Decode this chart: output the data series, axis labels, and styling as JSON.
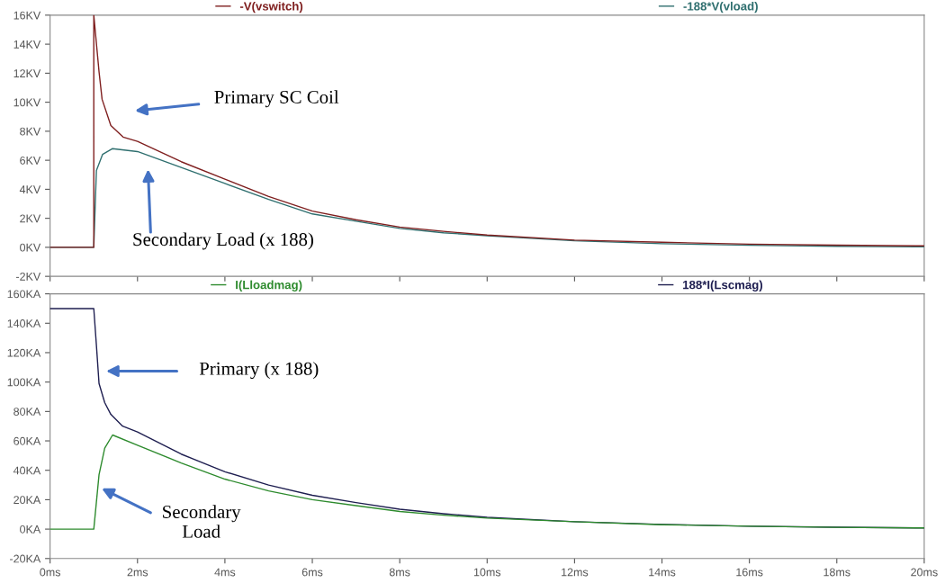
{
  "chart_data": [
    {
      "type": "line",
      "tick_labels": "y",
      "legend": "top",
      "xlim": [
        0,
        20
      ],
      "xticks": [
        0,
        2,
        4,
        6,
        8,
        10,
        12,
        14,
        16,
        18,
        20
      ],
      "ylim": [
        -2,
        16
      ],
      "yticks": [
        {
          "value": -2,
          "label": "-2KV"
        },
        {
          "value": 0,
          "label": "0KV"
        },
        {
          "value": 2,
          "label": "2KV"
        },
        {
          "value": 4,
          "label": "4KV"
        },
        {
          "value": 6,
          "label": "6KV"
        },
        {
          "value": 8,
          "label": "8KV"
        },
        {
          "value": 10,
          "label": "10KV"
        },
        {
          "value": 12,
          "label": "12KV"
        },
        {
          "value": 14,
          "label": "14KV"
        },
        {
          "value": 16,
          "label": "16KV"
        }
      ],
      "series": [
        {
          "name": "-V(vswitch)",
          "color": "#7f1f1f",
          "x": [
            0,
            1.0,
            1.0,
            1.12,
            1.19,
            1.39,
            1.67,
            2,
            3,
            4,
            5,
            6,
            7,
            8,
            9,
            10,
            12,
            14,
            16,
            18,
            20
          ],
          "values": [
            0,
            0,
            16,
            12.1,
            10.2,
            8.4,
            7.6,
            7.3,
            5.9,
            4.7,
            3.5,
            2.5,
            1.9,
            1.4,
            1.1,
            0.85,
            0.5,
            0.35,
            0.22,
            0.15,
            0.1
          ]
        },
        {
          "name": "-188*V(vload)",
          "color": "#2f6f6f",
          "x": [
            0,
            1.0,
            1.06,
            1.2,
            1.43,
            2,
            3,
            4,
            5,
            6,
            7,
            8,
            9,
            10,
            12,
            14,
            16,
            18,
            20
          ],
          "values": [
            0,
            0,
            5.3,
            6.4,
            6.8,
            6.6,
            5.5,
            4.4,
            3.3,
            2.3,
            1.8,
            1.3,
            1.0,
            0.8,
            0.45,
            0.25,
            0.14,
            0.07,
            0.03
          ]
        }
      ],
      "annotations": [
        "Primary SC Coil",
        "Secondary Load (x 188)"
      ]
    },
    {
      "type": "line",
      "legend": "top",
      "xlim": [
        0,
        20
      ],
      "xticks": [
        {
          "value": 0,
          "label": "0ms"
        },
        {
          "value": 2,
          "label": "2ms"
        },
        {
          "value": 4,
          "label": "4ms"
        },
        {
          "value": 6,
          "label": "6ms"
        },
        {
          "value": 8,
          "label": "8ms"
        },
        {
          "value": 10,
          "label": "10ms"
        },
        {
          "value": 12,
          "label": "12ms"
        },
        {
          "value": 14,
          "label": "14ms"
        },
        {
          "value": 16,
          "label": "16ms"
        },
        {
          "value": 18,
          "label": "18ms"
        },
        {
          "value": 20,
          "label": "20ms"
        }
      ],
      "ylim": [
        -20,
        160
      ],
      "yticks": [
        {
          "value": -20,
          "label": "-20KA"
        },
        {
          "value": 0,
          "label": "0KA"
        },
        {
          "value": 20,
          "label": "20KA"
        },
        {
          "value": 40,
          "label": "40KA"
        },
        {
          "value": 60,
          "label": "60KA"
        },
        {
          "value": 80,
          "label": "80KA"
        },
        {
          "value": 100,
          "label": "100KA"
        },
        {
          "value": 120,
          "label": "120KA"
        },
        {
          "value": 140,
          "label": "140KA"
        },
        {
          "value": 160,
          "label": "160KA"
        }
      ],
      "series": [
        {
          "name": "I(Lloadmag)",
          "color": "#2e8b2e",
          "x": [
            0,
            1.0,
            1.12,
            1.25,
            1.43,
            2,
            3,
            4,
            5,
            6,
            7,
            8,
            9,
            10,
            12,
            14,
            16,
            18,
            20
          ],
          "values": [
            0,
            0,
            37,
            55,
            64,
            57,
            45,
            34,
            26,
            20,
            16,
            12,
            9.5,
            7.5,
            5,
            3,
            2,
            1.2,
            0.8
          ]
        },
        {
          "name": "188*I(Lscmag)",
          "color": "#1e1e50",
          "x": [
            0,
            1.0,
            1.06,
            1.12,
            1.25,
            1.39,
            1.66,
            2,
            3,
            4,
            5,
            6,
            7,
            8,
            9,
            10,
            12,
            14,
            16,
            18,
            20
          ],
          "values": [
            150,
            150,
            125,
            99,
            86,
            78,
            70,
            66,
            51,
            39,
            30,
            23,
            18,
            13.5,
            10.5,
            8,
            5,
            3.2,
            2,
            1.3,
            0.8
          ]
        }
      ],
      "annotations": [
        "Primary (x 188)",
        "Secondary\nLoad"
      ]
    }
  ]
}
